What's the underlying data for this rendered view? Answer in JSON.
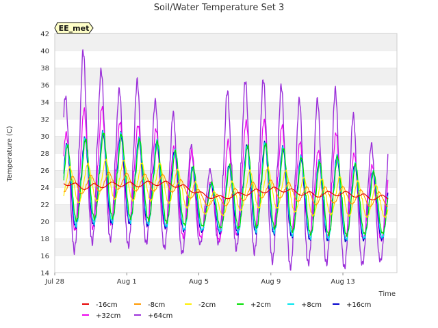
{
  "chart_data": {
    "type": "line",
    "title": "Soil/Water Temperature Set 3",
    "xlabel": "Time",
    "ylabel": "Temperature (C)",
    "badge": "EE_met",
    "ylim": [
      14,
      42
    ],
    "yticks": [
      14,
      16,
      18,
      20,
      22,
      24,
      26,
      28,
      30,
      32,
      34,
      36,
      38,
      40,
      42
    ],
    "xlim": [
      "2023-07-28",
      "2023-08-16"
    ],
    "xticks": [
      {
        "label": "Jul 28",
        "date": "2023-07-28"
      },
      {
        "label": "Aug 1",
        "date": "2023-08-01"
      },
      {
        "label": "Aug 5",
        "date": "2023-08-05"
      },
      {
        "label": "Aug 9",
        "date": "2023-08-09"
      },
      {
        "label": "Aug 13",
        "date": "2023-08-13"
      }
    ],
    "grid": "horizontal bands",
    "legend_position": "bottom",
    "x_start": "2023-07-28T12:00",
    "x_end": "2023-08-15T12:00",
    "day_offset": [
      0,
      1,
      2,
      3,
      4,
      5,
      6,
      7,
      8,
      9,
      10,
      11,
      12,
      13,
      14,
      15,
      16,
      17
    ],
    "series": [
      {
        "name": "-16cm",
        "color": "#e60000",
        "daily_mean": [
          24.6,
          24.0,
          24.2,
          24.4,
          24.3,
          24.5,
          24.4,
          23.8,
          22.9,
          22.8,
          23.3,
          23.6,
          23.8,
          23.4,
          23.1,
          23.3,
          23.2,
          22.8
        ],
        "daily_amp": [
          0.3,
          0.3,
          0.3,
          0.3,
          0.3,
          0.3,
          0.3,
          0.3,
          0.2,
          0.2,
          0.3,
          0.3,
          0.3,
          0.3,
          0.3,
          0.3,
          0.3,
          0.3
        ]
      },
      {
        "name": "-8cm",
        "color": "#ff9900",
        "daily_mean": [
          24.4,
          24.2,
          24.6,
          24.8,
          24.5,
          24.6,
          24.4,
          23.6,
          22.4,
          22.6,
          23.4,
          23.8,
          23.8,
          23.3,
          22.9,
          23.2,
          23.0,
          22.6
        ],
        "daily_amp": [
          1.0,
          1.0,
          1.1,
          1.1,
          1.0,
          1.1,
          1.0,
          0.9,
          0.6,
          0.8,
          1.0,
          1.1,
          1.1,
          1.0,
          1.0,
          1.1,
          1.0,
          0.9
        ]
      },
      {
        "name": "-2cm",
        "color": "#ffee00",
        "daily_mean": [
          24.2,
          24.4,
          24.8,
          25.0,
          24.6,
          24.7,
          24.3,
          23.4,
          22.0,
          22.4,
          23.6,
          24.0,
          23.9,
          23.2,
          22.7,
          23.1,
          22.8,
          22.4
        ],
        "daily_amp": [
          2.2,
          2.3,
          2.5,
          2.5,
          2.3,
          2.4,
          2.3,
          2.0,
          1.3,
          1.8,
          2.3,
          2.5,
          2.5,
          2.3,
          2.2,
          2.4,
          2.3,
          2.0
        ]
      },
      {
        "name": "+2cm",
        "color": "#00e000",
        "daily_mean": [
          24.4,
          24.8,
          25.4,
          25.4,
          25.0,
          24.8,
          24.2,
          23.2,
          21.8,
          22.6,
          24.0,
          24.3,
          24.0,
          23.2,
          22.6,
          23.1,
          22.6,
          22.2
        ],
        "daily_amp": [
          4.6,
          4.9,
          5.3,
          5.2,
          4.9,
          5.0,
          4.6,
          3.9,
          2.5,
          3.6,
          5.0,
          5.2,
          5.1,
          4.7,
          4.4,
          4.9,
          4.5,
          3.8
        ]
      },
      {
        "name": "+8cm",
        "color": "#00e5ee",
        "daily_mean": [
          24.2,
          24.6,
          25.2,
          25.2,
          24.8,
          24.6,
          24.0,
          22.9,
          21.6,
          22.4,
          23.8,
          24.1,
          23.8,
          23.0,
          22.4,
          22.9,
          22.4,
          22.0
        ],
        "daily_amp": [
          5.0,
          5.3,
          5.6,
          5.5,
          5.2,
          5.3,
          4.9,
          4.2,
          2.7,
          3.9,
          5.3,
          5.5,
          5.4,
          5.0,
          4.7,
          5.2,
          4.8,
          4.1
        ]
      },
      {
        "name": "+16cm",
        "color": "#0000cc",
        "daily_mean": [
          24.1,
          24.5,
          25.1,
          25.1,
          24.7,
          24.5,
          23.9,
          22.8,
          21.5,
          22.3,
          23.7,
          24.0,
          23.7,
          22.9,
          22.3,
          22.8,
          22.3,
          21.9
        ],
        "daily_amp": [
          5.1,
          5.4,
          5.7,
          5.6,
          5.3,
          5.4,
          5.0,
          4.3,
          2.8,
          4.0,
          5.4,
          5.6,
          5.5,
          5.1,
          4.8,
          5.3,
          4.9,
          4.2
        ]
      },
      {
        "name": "+32cm",
        "color": "#ee00ee",
        "daily_mean": [
          24.8,
          25.8,
          26.6,
          25.8,
          25.6,
          25.2,
          24.0,
          23.2,
          21.2,
          23.2,
          25.4,
          25.6,
          25.2,
          24.0,
          23.0,
          24.4,
          23.0,
          22.2
        ],
        "daily_amp": [
          5.4,
          7.6,
          7.4,
          6.2,
          6.0,
          6.2,
          5.0,
          6.0,
          2.8,
          6.2,
          6.6,
          6.6,
          6.6,
          5.8,
          5.2,
          6.6,
          5.4,
          4.6
        ]
      },
      {
        "name": "+64cm",
        "color": "#9b30d9",
        "daily_mean": [
          25.6,
          28.2,
          28.2,
          26.4,
          26.8,
          26.0,
          24.6,
          22.8,
          21.6,
          26.0,
          26.6,
          26.4,
          25.4,
          24.4,
          24.8,
          25.2,
          23.6,
          22.2
        ],
        "daily_amp": [
          9.0,
          12.6,
          10.2,
          9.4,
          10.4,
          8.6,
          8.8,
          6.8,
          3.6,
          9.6,
          10.4,
          10.8,
          11.2,
          10.4,
          9.8,
          11.0,
          9.6,
          7.2
        ]
      }
    ]
  }
}
